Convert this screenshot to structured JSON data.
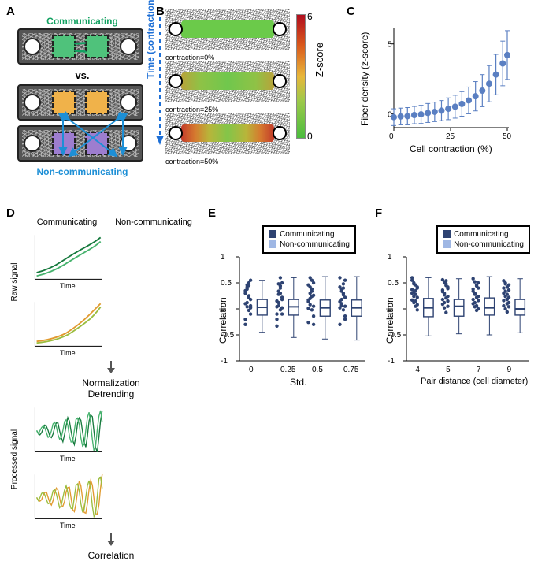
{
  "labels": {
    "A": "A",
    "B": "B",
    "C": "C",
    "D": "D",
    "E": "E",
    "F": "F"
  },
  "colors": {
    "comm_green": "#12a161",
    "noncomm_blue": "#1d8fd6",
    "cell_green": "#4fc27b",
    "cell_orange": "#f0b24a",
    "cell_purple": "#9d7dcf",
    "series_dark": "#2e4372",
    "series_light": "#9fb7e4",
    "accent": "#5a7fc2",
    "line_green_dark": "#177a3e",
    "line_green_light": "#47b36e",
    "line_orange": "#e19a2f",
    "line_yellowgreen": "#9bbd3f"
  },
  "panelA": {
    "title_comm": "Communicating",
    "vs": "vs.",
    "title_noncomm": "Non-communicating"
  },
  "panelB": {
    "time_label": "Time (contraction)",
    "frames": [
      {
        "c": "contraction=0%"
      },
      {
        "c": "contraction=25%"
      },
      {
        "c": "contraction=50%"
      }
    ],
    "cbar": {
      "label": "Z-score",
      "ticks": [
        "6",
        "0"
      ]
    }
  },
  "panelC": {
    "type": "errorbar-line",
    "xlabel": "Cell contraction (%)",
    "ylabel": "Fiber density (z-score)",
    "xlim": [
      0,
      50
    ],
    "xticks": [
      0,
      25,
      50
    ],
    "ylim": [
      -1,
      6
    ],
    "yticks": [
      0,
      5
    ],
    "ygrid": false,
    "marker_color": "#5a7fc2",
    "error_color": "#5a7fc2",
    "marker_size": 4,
    "error_width": 1.2,
    "x": [
      0,
      3,
      6,
      9,
      12,
      15,
      18,
      21,
      24,
      27,
      30,
      33,
      36,
      39,
      42,
      45,
      48,
      50
    ],
    "y": [
      -0.25,
      -0.2,
      -0.18,
      -0.1,
      -0.05,
      0.05,
      0.13,
      0.22,
      0.35,
      0.5,
      0.7,
      0.95,
      1.25,
      1.65,
      2.15,
      2.8,
      3.6,
      4.2
    ],
    "yerr": [
      0.6,
      0.6,
      0.62,
      0.62,
      0.65,
      0.68,
      0.7,
      0.72,
      0.78,
      0.82,
      0.88,
      0.96,
      1.05,
      1.15,
      1.3,
      1.45,
      1.6,
      1.75
    ]
  },
  "panelD": {
    "col_titles": [
      "Communicating",
      "Non-communicating"
    ],
    "rows": [
      "Raw signal",
      "Processed signal"
    ],
    "step1": "Normalization",
    "step2": "Detrending",
    "step3": "Correlation",
    "xlab": "Time"
  },
  "panelE": {
    "type": "box-scatter",
    "xlabel": "Std.",
    "ylabel": "Correlation",
    "ylim": [
      -1,
      1
    ],
    "yticks": [
      -1,
      -0.5,
      0,
      0.5,
      1
    ],
    "legend": [
      "Communicating",
      "Non-communicating"
    ],
    "categories": [
      "0",
      "0.25",
      "0.5",
      "0.75"
    ],
    "boxes": [
      {
        "q1": -0.12,
        "med": 0.03,
        "q3": 0.18,
        "wl": -0.45,
        "wh": 0.55
      },
      {
        "q1": -0.12,
        "med": 0.04,
        "q3": 0.18,
        "wl": -0.55,
        "wh": 0.6
      },
      {
        "q1": -0.14,
        "med": 0.02,
        "q3": 0.17,
        "wl": -0.58,
        "wh": 0.62
      },
      {
        "q1": -0.14,
        "med": 0.02,
        "q3": 0.17,
        "wl": -0.6,
        "wh": 0.62
      }
    ],
    "scatter": [
      [
        0.35,
        0.46,
        0.25,
        0.18,
        0.1,
        0.04,
        -0.03,
        -0.1,
        0.3,
        0.42,
        0.5,
        0.55,
        -0.2,
        0.12,
        0.22,
        0.02,
        -0.3,
        0.38,
        0.45,
        0.06
      ],
      [
        0.04,
        0.48,
        0.3,
        0.22,
        0.15,
        0.06,
        -0.02,
        -0.1,
        -0.2,
        0.34,
        0.4,
        0.5,
        -0.33,
        0.12,
        0.44,
        0.18,
        -0.1,
        0.28,
        0.6,
        0.02
      ],
      [
        0.46,
        0.42,
        0.34,
        0.26,
        0.17,
        0.08,
        -0.02,
        -0.14,
        -0.26,
        0.3,
        0.38,
        0.5,
        0.01,
        0.2,
        0.55,
        -0.3,
        0.14,
        0.6,
        0.24,
        0.05
      ],
      [
        0.42,
        0.38,
        0.3,
        0.22,
        0.14,
        0.07,
        -0.02,
        -0.14,
        -0.3,
        0.34,
        0.48,
        0.55,
        0.02,
        0.18,
        0.27,
        -0.2,
        0.6,
        0.1,
        0.4,
        0.05
      ]
    ]
  },
  "panelF": {
    "type": "box-scatter",
    "xlabel": "Pair distance (cell diameter)",
    "ylabel": "Correlation",
    "ylim": [
      -1,
      1
    ],
    "yticks": [
      -1,
      -0.5,
      0,
      0.5,
      1
    ],
    "legend": [
      "Communicating",
      "Non-communicating"
    ],
    "categories": [
      "4",
      "5",
      "7",
      "9"
    ],
    "boxes": [
      {
        "q1": -0.15,
        "med": 0.02,
        "q3": 0.2,
        "wl": -0.52,
        "wh": 0.6
      },
      {
        "q1": -0.14,
        "med": 0.05,
        "q3": 0.18,
        "wl": -0.48,
        "wh": 0.58
      },
      {
        "q1": -0.12,
        "med": 0.02,
        "q3": 0.21,
        "wl": -0.5,
        "wh": 0.62
      },
      {
        "q1": -0.12,
        "med": 0.0,
        "q3": 0.18,
        "wl": -0.46,
        "wh": 0.58
      }
    ],
    "scatter": [
      [
        0.55,
        0.5,
        0.46,
        0.42,
        0.37,
        0.32,
        0.28,
        0.22,
        0.17,
        0.12,
        0.05,
        -0.02,
        0.6,
        0.48,
        0.35,
        0.4,
        0.3,
        0.24,
        0.15,
        0.08
      ],
      [
        0.56,
        0.5,
        0.45,
        0.39,
        0.33,
        0.27,
        0.21,
        0.15,
        0.09,
        0.02,
        -0.07,
        0.42,
        0.36,
        0.3,
        0.48,
        0.24,
        0.18,
        0.12,
        0.54,
        0.05
      ],
      [
        0.58,
        0.52,
        0.46,
        0.4,
        0.34,
        0.28,
        0.22,
        0.16,
        0.1,
        0.04,
        -0.03,
        0.5,
        0.38,
        0.3,
        0.44,
        0.24,
        0.18,
        0.12,
        0.06,
        0.0
      ],
      [
        0.54,
        0.48,
        0.42,
        0.36,
        0.3,
        0.24,
        0.18,
        0.12,
        0.06,
        0.0,
        -0.06,
        0.46,
        0.4,
        0.34,
        0.28,
        0.22,
        0.16,
        0.5,
        0.1,
        0.04
      ]
    ]
  }
}
